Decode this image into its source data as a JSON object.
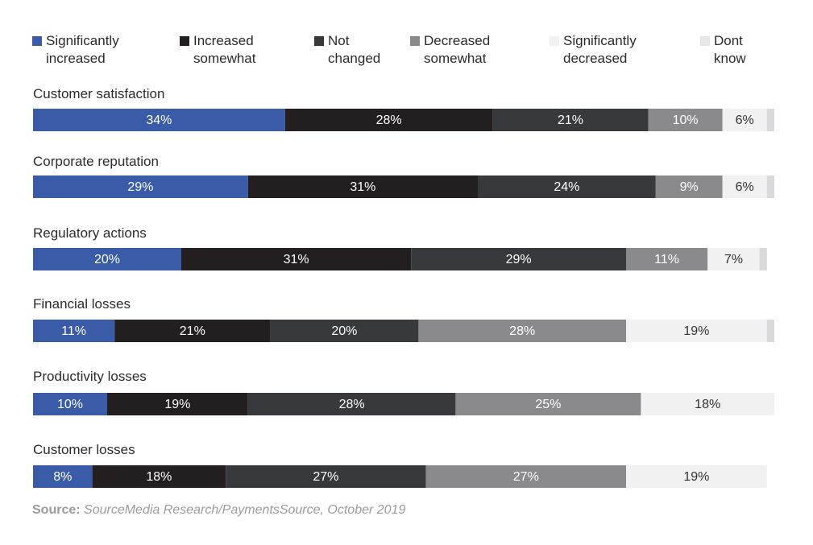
{
  "chart_data": {
    "type": "bar",
    "orientation": "horizontal",
    "stacked": true,
    "categories": [
      "Customer satisfaction",
      "Corporate reputation",
      "Regulatory actions",
      "Financial losses",
      "Productivity losses",
      "Customer losses"
    ],
    "series": [
      {
        "name": "Significantly increased",
        "legend_text": "Significantly\nincreased",
        "color": "#3a5ba8",
        "label_color": "#ffffff",
        "values": [
          34,
          29,
          20,
          11,
          10,
          8
        ]
      },
      {
        "name": "Increased somewhat",
        "legend_text": "Increased\nsomewhat",
        "color": "#231f20",
        "label_color": "#ffffff",
        "values": [
          28,
          31,
          31,
          21,
          19,
          18
        ]
      },
      {
        "name": "Not changed",
        "legend_text": "Not\nchanged",
        "color": "#37393c",
        "label_color": "#ffffff",
        "values": [
          21,
          24,
          29,
          20,
          28,
          27
        ]
      },
      {
        "name": "Decreased somewhat",
        "legend_text": "Decreased\nsomewhat",
        "color": "#8a8a8c",
        "label_color": "#ffffff",
        "values": [
          10,
          9,
          11,
          28,
          25,
          27
        ]
      },
      {
        "name": "Significantly decreased",
        "legend_text": "Significantly\ndecreased",
        "color": "#f1f1f2",
        "label_color": "#333333",
        "values": [
          6,
          6,
          7,
          19,
          18,
          19
        ]
      },
      {
        "name": "Dont know",
        "legend_text": "Dont\nknow",
        "color": "#d9d9db",
        "label_color": "#333333",
        "values": [
          1,
          1,
          1,
          1,
          0,
          0
        ]
      }
    ],
    "value_suffix": "%",
    "xlim": [
      0,
      100
    ],
    "legend_position": "top",
    "grid": false
  },
  "source": {
    "label": "Source:",
    "text": "SourceMedia Research/PaymentsSource, October 2019"
  }
}
